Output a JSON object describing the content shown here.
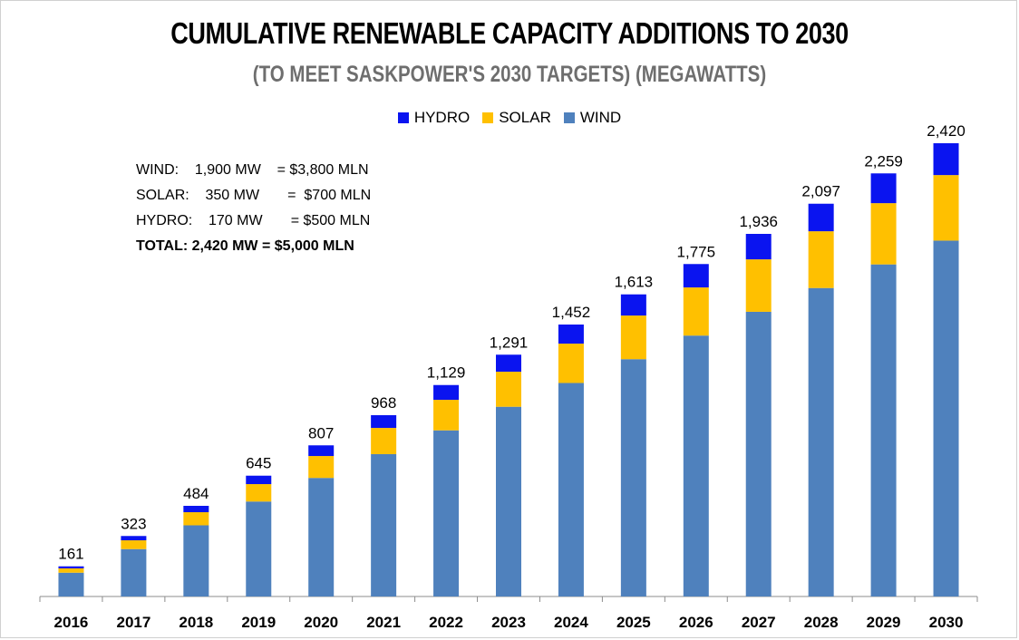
{
  "chart_data": {
    "type": "bar",
    "stacked": true,
    "title": "CUMULATIVE RENEWABLE CAPACITY ADDITIONS TO 2030",
    "subtitle": "(TO MEET SASKPOWER'S  2030 TARGETS) (MEGAWATTS)",
    "xlabel": "",
    "ylabel": "",
    "ylim": [
      0,
      2420
    ],
    "grid": false,
    "legend_position": "top",
    "categories": [
      "2016",
      "2017",
      "2018",
      "2019",
      "2020",
      "2021",
      "2022",
      "2023",
      "2024",
      "2025",
      "2026",
      "2027",
      "2028",
      "2029",
      "2030"
    ],
    "series": [
      {
        "name": "WIND",
        "color": "#4f81bd",
        "values": [
          127,
          253,
          380,
          507,
          633,
          760,
          887,
          1013,
          1140,
          1267,
          1393,
          1520,
          1647,
          1773,
          1900
        ]
      },
      {
        "name": "SOLAR",
        "color": "#ffc000",
        "values": [
          23,
          47,
          70,
          93,
          117,
          140,
          163,
          187,
          210,
          233,
          257,
          280,
          303,
          327,
          350
        ]
      },
      {
        "name": "HYDRO",
        "color": "#0a14f0",
        "values": [
          11,
          23,
          34,
          45,
          57,
          68,
          79,
          91,
          102,
          113,
          125,
          136,
          147,
          159,
          170
        ]
      }
    ],
    "totals": [
      "161",
      "323",
      "484",
      "645",
      "807",
      "968",
      "1,129",
      "1,291",
      "1,452",
      "1,613",
      "1,775",
      "1,936",
      "2,097",
      "2,259",
      "2,420"
    ],
    "legend": [
      "HYDRO",
      "SOLAR",
      "WIND"
    ],
    "notes": [
      "WIND:    1,900 MW    = $3,800 MLN",
      "SOLAR:    350 MW       =  $700 MLN",
      "HYDRO:    170 MW       = $500 MLN",
      "TOTAL: 2,420 MW = $5,000 MLN"
    ]
  }
}
